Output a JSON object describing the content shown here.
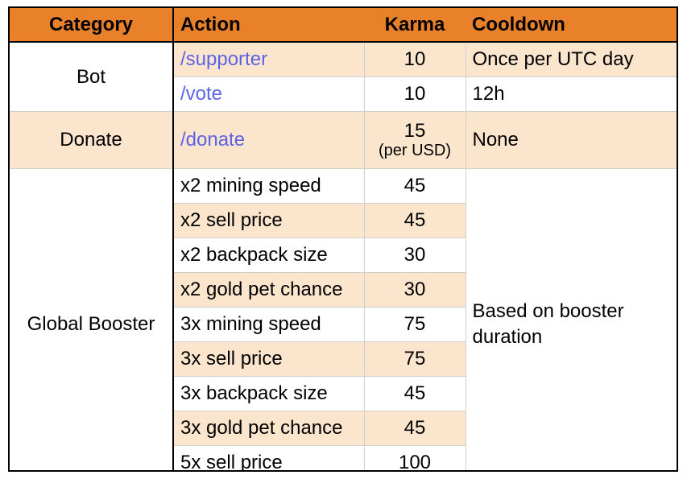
{
  "headers": {
    "category": "Category",
    "action": "Action",
    "karma": "Karma",
    "cooldown": "Cooldown"
  },
  "rows": [
    {
      "category": "Bot",
      "action": "/supporter",
      "karma": "10",
      "cooldown": "Once per UTC day"
    },
    {
      "action": "/vote",
      "karma": "10",
      "cooldown": "12h"
    },
    {
      "category": "Donate",
      "action": "/donate",
      "karma": "15",
      "karma_note": "(per USD)",
      "cooldown": "None"
    },
    {
      "category": "Global Booster",
      "action": "x2 mining speed",
      "karma": "45",
      "cooldown": "Based on booster duration"
    },
    {
      "action": "x2 sell price",
      "karma": "45"
    },
    {
      "action": "x2 backpack size",
      "karma": "30"
    },
    {
      "action": "x2 gold pet chance",
      "karma": "30"
    },
    {
      "action": "3x mining speed",
      "karma": "75"
    },
    {
      "action": "3x sell price",
      "karma": "75"
    },
    {
      "action": "3x backpack size",
      "karma": "45"
    },
    {
      "action": "3x gold pet chance",
      "karma": "45"
    },
    {
      "action": "5x sell price",
      "karma": "100"
    }
  ],
  "colors": {
    "header_bg": "#e8812a",
    "row_shade": "#fce5cd",
    "command_text": "#5b63e8"
  }
}
